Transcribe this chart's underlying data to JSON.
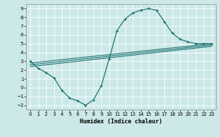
{
  "xlabel": "Humidex (Indice chaleur)",
  "ylabel": "",
  "bg_color": "#cce8e8",
  "grid_color": "#ffffff",
  "line_color": "#1a7070",
  "xlim": [
    -0.5,
    23.5
  ],
  "ylim": [
    -2.5,
    9.5
  ],
  "yticks": [
    -2,
    -1,
    0,
    1,
    2,
    3,
    4,
    5,
    6,
    7,
    8,
    9
  ],
  "xticks": [
    0,
    1,
    2,
    3,
    4,
    5,
    6,
    7,
    8,
    9,
    10,
    11,
    12,
    13,
    14,
    15,
    16,
    17,
    18,
    19,
    20,
    21,
    22,
    23
  ],
  "curve_x": [
    0,
    1,
    2,
    3,
    4,
    5,
    6,
    7,
    8,
    9,
    10,
    11,
    12,
    13,
    14,
    15,
    16,
    17,
    18,
    19,
    20,
    21,
    22,
    23
  ],
  "curve_y": [
    3.0,
    2.2,
    1.7,
    1.1,
    -0.3,
    -1.2,
    -1.5,
    -2.0,
    -1.4,
    0.2,
    3.3,
    6.5,
    7.8,
    8.5,
    8.8,
    9.0,
    8.8,
    7.5,
    6.2,
    5.5,
    5.2,
    5.0,
    5.0,
    5.0
  ],
  "line1_x": [
    0,
    23
  ],
  "line1_y": [
    2.8,
    5.0
  ],
  "line2_x": [
    0,
    23
  ],
  "line2_y": [
    2.6,
    4.85
  ],
  "line3_x": [
    0,
    23
  ],
  "line3_y": [
    2.4,
    4.7
  ]
}
